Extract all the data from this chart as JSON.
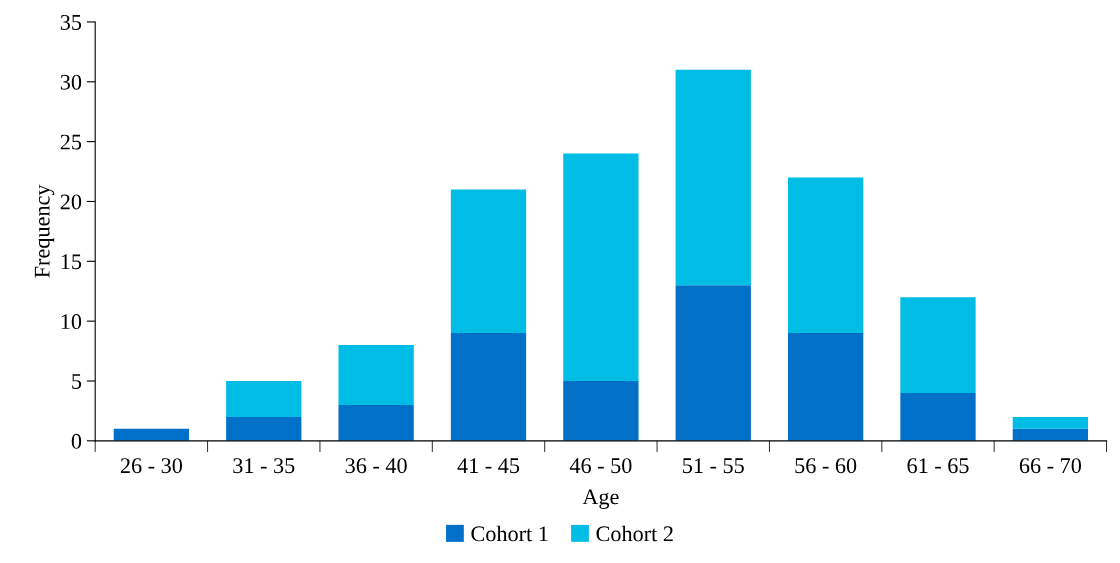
{
  "chart_data": {
    "type": "bar",
    "stacked": true,
    "xlabel": "Age",
    "ylabel": "Frequency",
    "categories": [
      "26 - 30",
      "31 - 35",
      "36 - 40",
      "41 - 45",
      "46 - 50",
      "51 - 55",
      "56 - 60",
      "61 - 65",
      "66 - 70"
    ],
    "series": [
      {
        "name": "Cohort 1",
        "color": "#0070c8",
        "values": [
          1,
          2,
          3,
          9,
          5,
          13,
          9,
          4,
          1
        ]
      },
      {
        "name": "Cohort 2",
        "color": "#00bde6",
        "values": [
          0,
          3,
          5,
          12,
          19,
          18,
          13,
          8,
          1
        ]
      }
    ],
    "ylim": [
      0,
      35
    ],
    "yticks": [
      0,
      5,
      10,
      15,
      20,
      25,
      30,
      35
    ],
    "grid": false,
    "legend": "bottom"
  }
}
